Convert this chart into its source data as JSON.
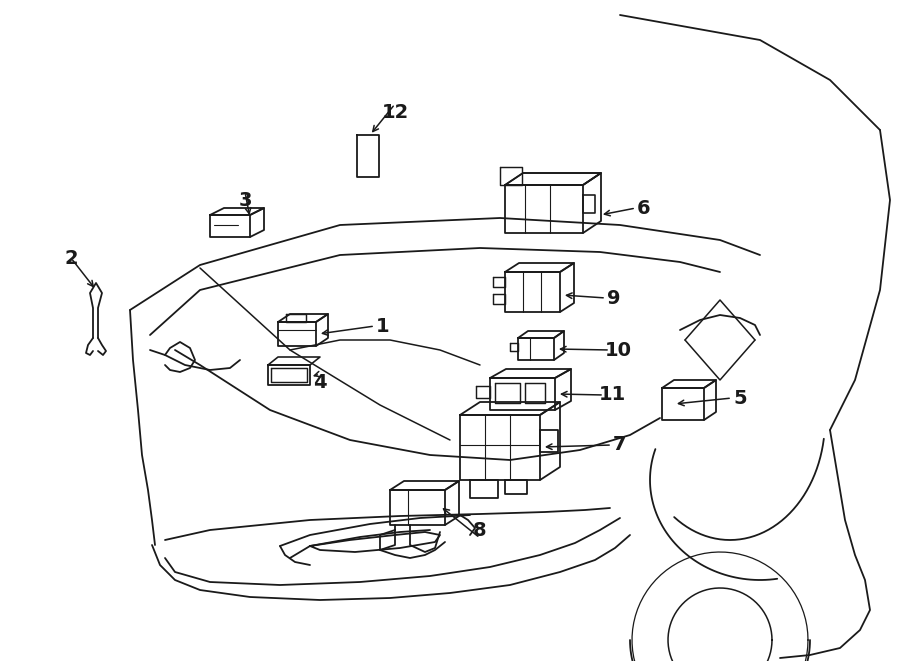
{
  "bg_color": "#ffffff",
  "line_color": "#1a1a1a",
  "fig_width": 9.0,
  "fig_height": 6.61,
  "dpi": 100,
  "label_font_size": 14,
  "arrow_font_size": 11
}
